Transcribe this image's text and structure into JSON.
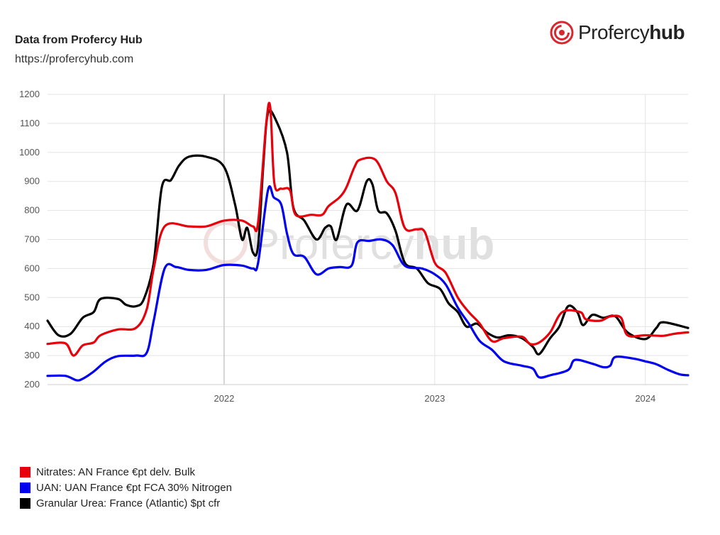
{
  "header": {
    "title": "Data from Profercy Hub",
    "url": "https://profercyhub.com"
  },
  "logo": {
    "text_light": "Profercy",
    "text_bold": "hub",
    "icon": "profercy-swirl-icon",
    "color": "#d7282f"
  },
  "watermark": {
    "text_light": "Profercy",
    "text_bold": "hub"
  },
  "chart_data": {
    "type": "line",
    "x_ticks": [
      "2022",
      "2023",
      "2024"
    ],
    "y_ticks": [
      200,
      300,
      400,
      500,
      600,
      700,
      800,
      900,
      1000,
      1100,
      1200
    ],
    "xlim": [
      "2021-03-01",
      "2024-03-15"
    ],
    "ylim": [
      200,
      1200
    ],
    "grid": true,
    "legend_position": "bottom-left",
    "series": [
      {
        "name": "Nitrates: AN France €pt delv. Bulk",
        "color": "#e8000b",
        "points": [
          [
            "2021-03-01",
            340
          ],
          [
            "2021-04-01",
            342
          ],
          [
            "2021-04-15",
            300
          ],
          [
            "2021-05-01",
            335
          ],
          [
            "2021-05-20",
            345
          ],
          [
            "2021-06-01",
            370
          ],
          [
            "2021-07-01",
            390
          ],
          [
            "2021-08-01",
            395
          ],
          [
            "2021-08-20",
            460
          ],
          [
            "2021-09-01",
            600
          ],
          [
            "2021-09-20",
            745
          ],
          [
            "2021-11-01",
            745
          ],
          [
            "2021-12-01",
            745
          ],
          [
            "2022-01-01",
            765
          ],
          [
            "2022-02-01",
            765
          ],
          [
            "2022-02-20",
            745
          ],
          [
            "2022-03-01",
            760
          ],
          [
            "2022-03-15",
            1100
          ],
          [
            "2022-03-22",
            1155
          ],
          [
            "2022-03-29",
            895
          ],
          [
            "2022-04-10",
            875
          ],
          [
            "2022-04-25",
            870
          ],
          [
            "2022-05-05",
            785
          ],
          [
            "2022-06-01",
            785
          ],
          [
            "2022-06-20",
            785
          ],
          [
            "2022-07-01",
            815
          ],
          [
            "2022-07-20",
            845
          ],
          [
            "2022-08-01",
            880
          ],
          [
            "2022-08-15",
            950
          ],
          [
            "2022-08-25",
            975
          ],
          [
            "2022-09-20",
            975
          ],
          [
            "2022-10-10",
            900
          ],
          [
            "2022-10-25",
            860
          ],
          [
            "2022-11-10",
            740
          ],
          [
            "2022-12-01",
            735
          ],
          [
            "2022-12-15",
            725
          ],
          [
            "2023-01-01",
            620
          ],
          [
            "2023-01-20",
            585
          ],
          [
            "2023-02-10",
            500
          ],
          [
            "2023-03-01",
            450
          ],
          [
            "2023-03-20",
            410
          ],
          [
            "2023-04-10",
            350
          ],
          [
            "2023-05-01",
            360
          ],
          [
            "2023-06-01",
            365
          ],
          [
            "2023-06-15",
            340
          ],
          [
            "2023-07-01",
            345
          ],
          [
            "2023-07-20",
            380
          ],
          [
            "2023-08-10",
            450
          ],
          [
            "2023-09-10",
            450
          ],
          [
            "2023-09-20",
            425
          ],
          [
            "2023-10-15",
            420
          ],
          [
            "2023-11-01",
            435
          ],
          [
            "2023-11-20",
            430
          ],
          [
            "2023-12-01",
            370
          ],
          [
            "2024-01-01",
            370
          ],
          [
            "2024-02-01",
            368
          ],
          [
            "2024-02-20",
            375
          ],
          [
            "2024-03-15",
            380
          ]
        ]
      },
      {
        "name": "UAN: UAN France €pt FCA 30% Nitrogen",
        "color": "#0000ee",
        "points": [
          [
            "2021-03-01",
            230
          ],
          [
            "2021-04-01",
            230
          ],
          [
            "2021-04-20",
            215
          ],
          [
            "2021-05-01",
            220
          ],
          [
            "2021-05-20",
            245
          ],
          [
            "2021-06-10",
            280
          ],
          [
            "2021-07-01",
            298
          ],
          [
            "2021-08-01",
            300
          ],
          [
            "2021-08-20",
            310
          ],
          [
            "2021-09-01",
            420
          ],
          [
            "2021-09-20",
            600
          ],
          [
            "2021-10-10",
            605
          ],
          [
            "2021-11-01",
            595
          ],
          [
            "2021-12-01",
            595
          ],
          [
            "2022-01-01",
            612
          ],
          [
            "2022-02-01",
            610
          ],
          [
            "2022-02-20",
            600
          ],
          [
            "2022-03-01",
            620
          ],
          [
            "2022-03-18",
            870
          ],
          [
            "2022-03-28",
            845
          ],
          [
            "2022-04-10",
            820
          ],
          [
            "2022-04-20",
            720
          ],
          [
            "2022-05-01",
            650
          ],
          [
            "2022-05-20",
            640
          ],
          [
            "2022-06-10",
            580
          ],
          [
            "2022-07-01",
            600
          ],
          [
            "2022-07-20",
            605
          ],
          [
            "2022-08-10",
            610
          ],
          [
            "2022-08-20",
            690
          ],
          [
            "2022-09-10",
            695
          ],
          [
            "2022-10-01",
            700
          ],
          [
            "2022-10-20",
            680
          ],
          [
            "2022-11-10",
            610
          ],
          [
            "2022-12-10",
            600
          ],
          [
            "2023-01-01",
            580
          ],
          [
            "2023-01-20",
            545
          ],
          [
            "2023-02-10",
            465
          ],
          [
            "2023-03-01",
            410
          ],
          [
            "2023-03-20",
            350
          ],
          [
            "2023-04-10",
            320
          ],
          [
            "2023-05-01",
            280
          ],
          [
            "2023-06-01",
            265
          ],
          [
            "2023-06-20",
            255
          ],
          [
            "2023-07-01",
            225
          ],
          [
            "2023-07-20",
            232
          ],
          [
            "2023-08-20",
            250
          ],
          [
            "2023-09-01",
            285
          ],
          [
            "2023-10-01",
            272
          ],
          [
            "2023-10-20",
            260
          ],
          [
            "2023-11-01",
            265
          ],
          [
            "2023-11-10",
            295
          ],
          [
            "2023-12-10",
            290
          ],
          [
            "2024-01-01",
            280
          ],
          [
            "2024-01-20",
            270
          ],
          [
            "2024-02-10",
            250
          ],
          [
            "2024-03-01",
            235
          ],
          [
            "2024-03-15",
            232
          ]
        ]
      },
      {
        "name": "Granular Urea: France (Atlantic) $pt cfr",
        "color": "#000000",
        "points": [
          [
            "2021-03-01",
            420
          ],
          [
            "2021-03-20",
            370
          ],
          [
            "2021-04-10",
            375
          ],
          [
            "2021-05-01",
            430
          ],
          [
            "2021-05-20",
            450
          ],
          [
            "2021-06-01",
            495
          ],
          [
            "2021-07-01",
            495
          ],
          [
            "2021-07-15",
            475
          ],
          [
            "2021-08-01",
            470
          ],
          [
            "2021-08-15",
            495
          ],
          [
            "2021-09-01",
            620
          ],
          [
            "2021-09-15",
            880
          ],
          [
            "2021-10-01",
            905
          ],
          [
            "2021-10-15",
            955
          ],
          [
            "2021-11-01",
            985
          ],
          [
            "2021-12-01",
            985
          ],
          [
            "2022-01-01",
            950
          ],
          [
            "2022-01-20",
            820
          ],
          [
            "2022-02-01",
            700
          ],
          [
            "2022-02-10",
            740
          ],
          [
            "2022-02-20",
            655
          ],
          [
            "2022-03-01",
            680
          ],
          [
            "2022-03-10",
            960
          ],
          [
            "2022-03-18",
            1135
          ],
          [
            "2022-04-01",
            1110
          ],
          [
            "2022-04-20",
            1000
          ],
          [
            "2022-05-01",
            810
          ],
          [
            "2022-05-20",
            765
          ],
          [
            "2022-06-10",
            700
          ],
          [
            "2022-06-25",
            740
          ],
          [
            "2022-07-05",
            745
          ],
          [
            "2022-07-15",
            700
          ],
          [
            "2022-08-01",
            820
          ],
          [
            "2022-08-20",
            800
          ],
          [
            "2022-09-05",
            900
          ],
          [
            "2022-09-15",
            890
          ],
          [
            "2022-09-25",
            800
          ],
          [
            "2022-10-10",
            790
          ],
          [
            "2022-10-25",
            730
          ],
          [
            "2022-11-10",
            620
          ],
          [
            "2022-12-01",
            600
          ],
          [
            "2022-12-20",
            550
          ],
          [
            "2023-01-10",
            530
          ],
          [
            "2023-01-25",
            480
          ],
          [
            "2023-02-10",
            450
          ],
          [
            "2023-02-25",
            400
          ],
          [
            "2023-03-15",
            410
          ],
          [
            "2023-04-01",
            380
          ],
          [
            "2023-04-20",
            362
          ],
          [
            "2023-05-10",
            370
          ],
          [
            "2023-06-01",
            360
          ],
          [
            "2023-06-20",
            330
          ],
          [
            "2023-07-01",
            305
          ],
          [
            "2023-07-20",
            360
          ],
          [
            "2023-08-05",
            400
          ],
          [
            "2023-08-20",
            470
          ],
          [
            "2023-09-05",
            450
          ],
          [
            "2023-09-15",
            405
          ],
          [
            "2023-10-01",
            440
          ],
          [
            "2023-10-20",
            430
          ],
          [
            "2023-11-10",
            435
          ],
          [
            "2023-12-01",
            380
          ],
          [
            "2024-01-01",
            357
          ],
          [
            "2024-01-20",
            395
          ],
          [
            "2024-02-01",
            415
          ],
          [
            "2024-03-15",
            395
          ]
        ]
      }
    ]
  }
}
